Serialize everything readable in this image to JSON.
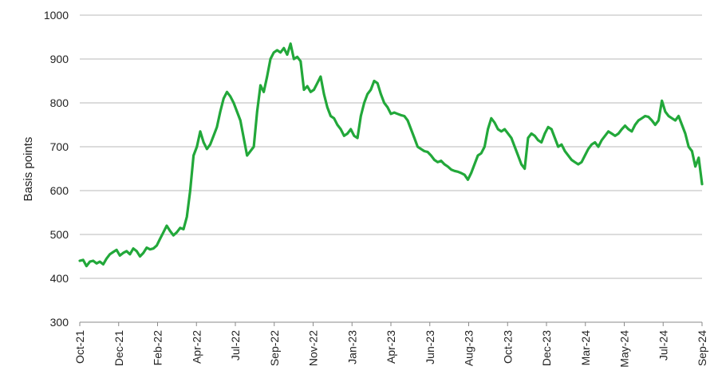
{
  "chart_data": {
    "type": "line",
    "title": "",
    "xlabel": "",
    "ylabel": "Basis points",
    "ylim": [
      300,
      1000
    ],
    "yticks": [
      300,
      400,
      500,
      600,
      700,
      800,
      900,
      1000
    ],
    "grid": "horizontal",
    "legend": "none",
    "xtick_labels": [
      "Oct-21",
      "Dec-21",
      "Feb-22",
      "Apr-22",
      "Jul-22",
      "Sep-22",
      "Nov-22",
      "Jan-23",
      "Apr-23",
      "Jun-23",
      "Aug-23",
      "Oct-23",
      "Dec-23",
      "Mar-24",
      "May-24",
      "Jul-24",
      "Sep-24"
    ],
    "line_color": "#22a83a",
    "series": [
      {
        "values": [
          440,
          442,
          428,
          438,
          440,
          434,
          438,
          432,
          445,
          455,
          460,
          465,
          452,
          458,
          462,
          455,
          468,
          462,
          450,
          458,
          470,
          466,
          468,
          475,
          490,
          505,
          520,
          508,
          498,
          505,
          515,
          512,
          540,
          600,
          680,
          700,
          735,
          710,
          695,
          705,
          725,
          745,
          780,
          810,
          825,
          815,
          800,
          780,
          760,
          720,
          680,
          690,
          700,
          780,
          840,
          825,
          860,
          900,
          915,
          920,
          915,
          925,
          910,
          935,
          900,
          905,
          895,
          830,
          838,
          825,
          830,
          845,
          860,
          820,
          790,
          770,
          765,
          750,
          740,
          725,
          730,
          740,
          725,
          720,
          770,
          800,
          820,
          830,
          850,
          845,
          820,
          800,
          790,
          775,
          778,
          775,
          772,
          770,
          760,
          740,
          720,
          700,
          695,
          690,
          688,
          680,
          670,
          665,
          668,
          660,
          655,
          648,
          645,
          643,
          640,
          636,
          625,
          640,
          660,
          680,
          685,
          700,
          740,
          765,
          755,
          740,
          735,
          740,
          730,
          720,
          700,
          680,
          660,
          650,
          720,
          730,
          725,
          715,
          710,
          730,
          745,
          740,
          720,
          700,
          705,
          690,
          680,
          670,
          665,
          660,
          665,
          680,
          695,
          705,
          710,
          700,
          715,
          725,
          735,
          730,
          725,
          730,
          740,
          748,
          740,
          735,
          750,
          760,
          765,
          770,
          768,
          760,
          750,
          760,
          805,
          780,
          770,
          765,
          760,
          770,
          750,
          730,
          700,
          690,
          655,
          675,
          615
        ]
      }
    ]
  }
}
